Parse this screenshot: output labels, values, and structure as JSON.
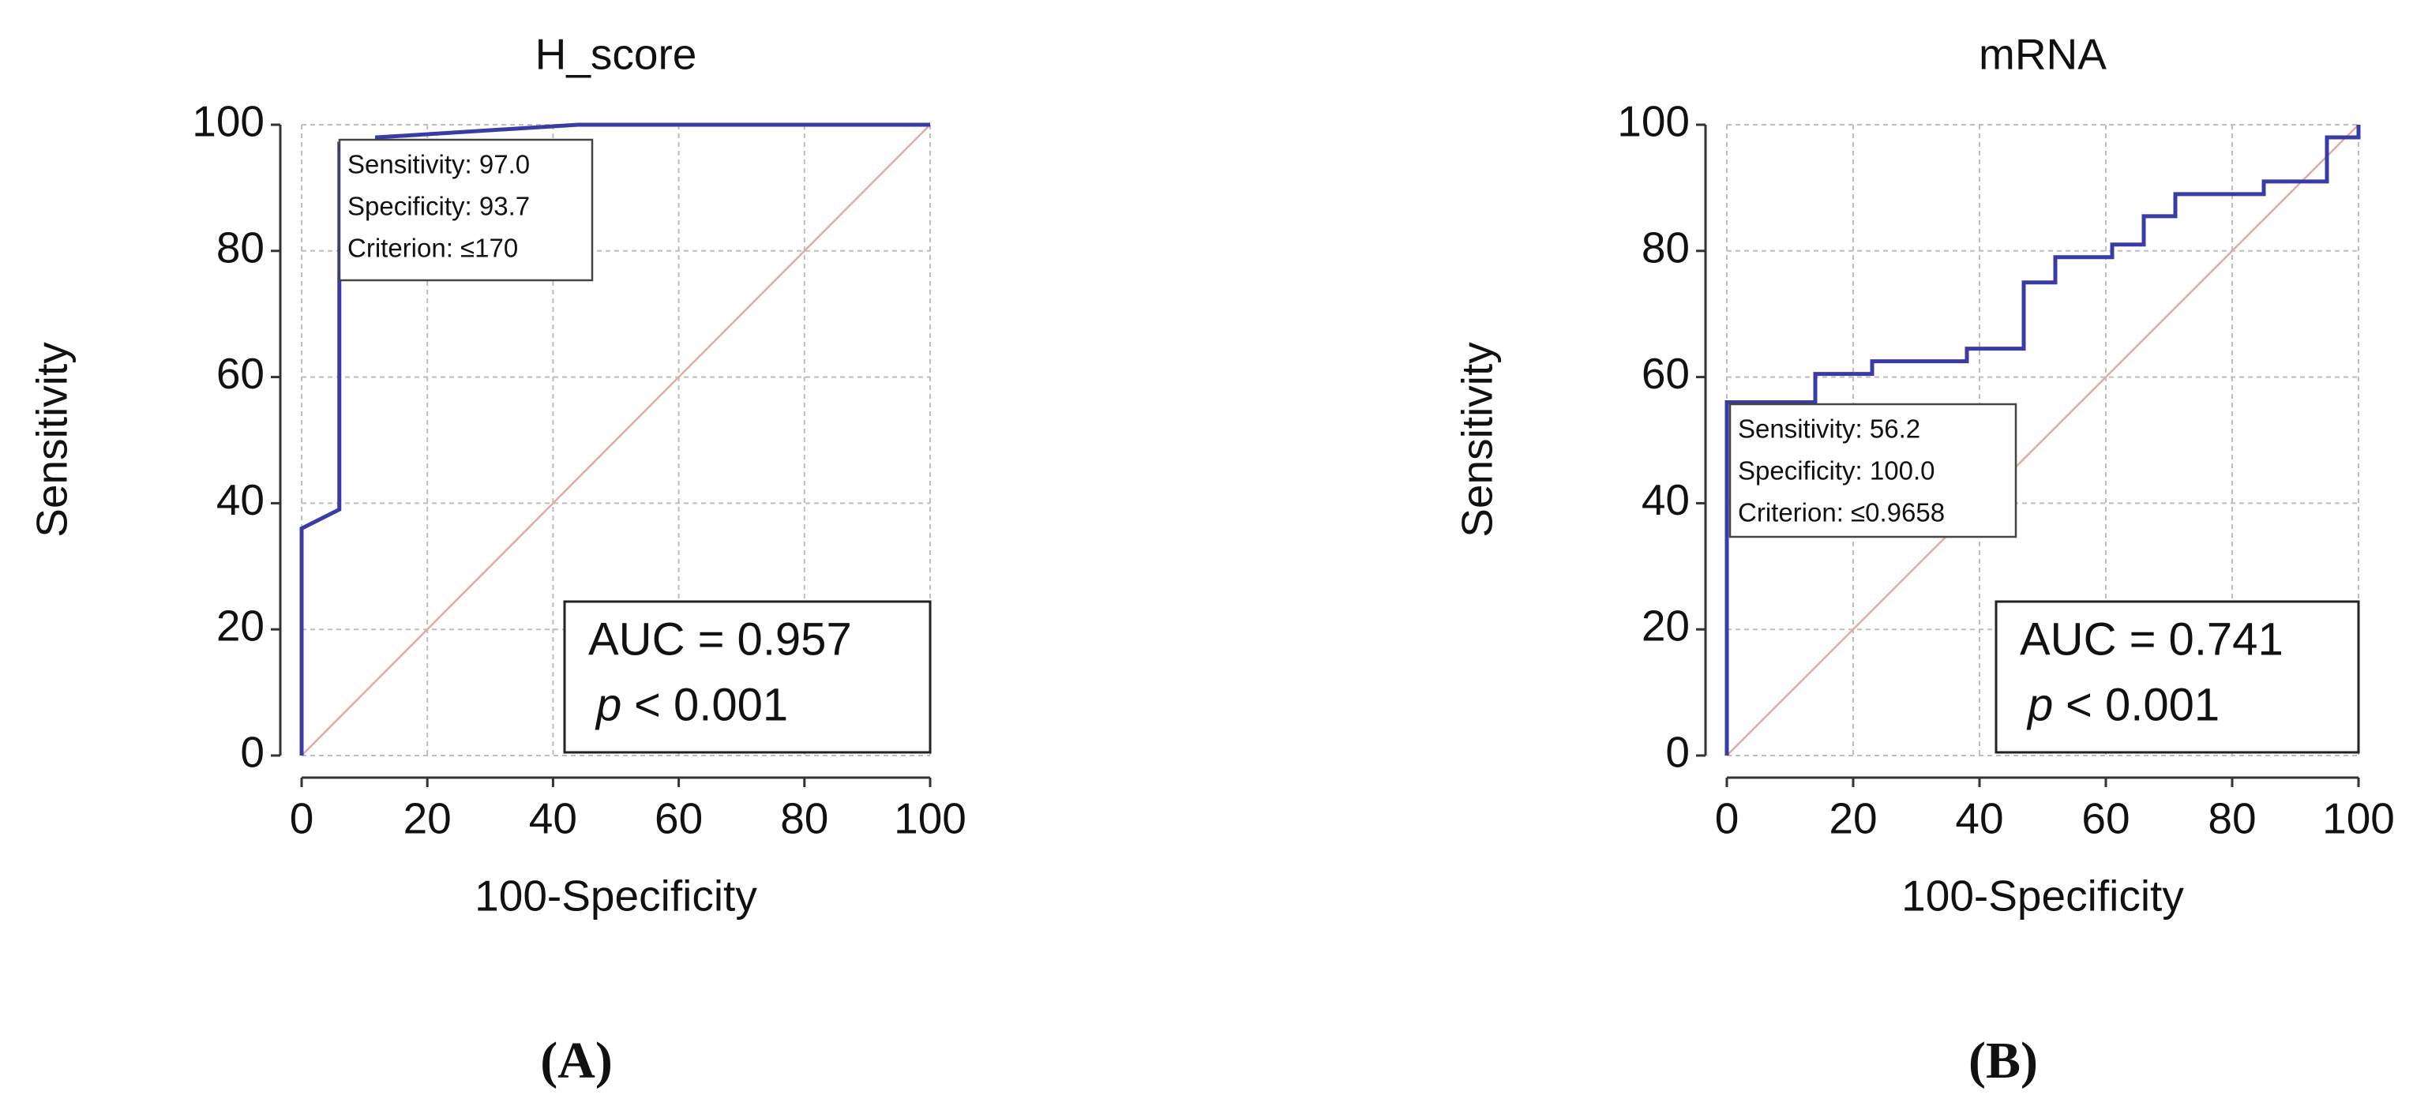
{
  "chart_data": [
    {
      "type": "line",
      "title": "H_score",
      "xlabel": "100-Specificity",
      "ylabel": "Sensitivity",
      "xlim": [
        0,
        100
      ],
      "ylim": [
        0,
        100
      ],
      "xticks": [
        0,
        20,
        40,
        60,
        80,
        100
      ],
      "yticks": [
        0,
        20,
        40,
        60,
        80,
        100
      ],
      "grid": true,
      "series": [
        {
          "color": "#e3aaa2",
          "x": [
            0,
            100
          ],
          "values": [
            0,
            100
          ]
        },
        {
          "color": "#3b3ba6",
          "x": [
            0,
            0,
            6,
            6,
            12,
            12,
            44,
            100
          ],
          "values": [
            0,
            36,
            39,
            97,
            97,
            98,
            100,
            100
          ]
        }
      ],
      "annotation": [
        "Sensitivity: 97.0",
        "Specificity: 93.7",
        "Criterion: ≤170"
      ],
      "auc": "AUC = 0.957",
      "p_symbol": "p",
      "p_value": "< 0.001",
      "panel_label": "(A)"
    },
    {
      "type": "line",
      "title": "mRNA",
      "xlabel": "100-Specificity",
      "ylabel": "Sensitivity",
      "xlim": [
        0,
        100
      ],
      "ylim": [
        0,
        100
      ],
      "xticks": [
        0,
        20,
        40,
        60,
        80,
        100
      ],
      "yticks": [
        0,
        20,
        40,
        60,
        80,
        100
      ],
      "grid": true,
      "series": [
        {
          "color": "#e3aaa2",
          "x": [
            0,
            100
          ],
          "values": [
            0,
            100
          ]
        },
        {
          "color": "#3b3ba6",
          "x": [
            0,
            0,
            14,
            14,
            23,
            23,
            38,
            38,
            47,
            47,
            52,
            52,
            61,
            61,
            66,
            66,
            71,
            71,
            85,
            85,
            95,
            95,
            100,
            100
          ],
          "values": [
            0,
            56,
            56,
            60.5,
            60.5,
            62.5,
            62.5,
            64.5,
            64.5,
            75,
            75,
            79,
            79,
            81,
            81,
            85.5,
            85.5,
            89,
            89,
            91,
            91,
            98,
            98,
            100
          ]
        }
      ],
      "annotation": [
        "Sensitivity: 56.2",
        "Specificity: 100.0",
        "Criterion: ≤0.9658"
      ],
      "auc": "AUC = 0.741",
      "p_symbol": "p",
      "p_value": "< 0.001",
      "panel_label": "(B)"
    }
  ]
}
